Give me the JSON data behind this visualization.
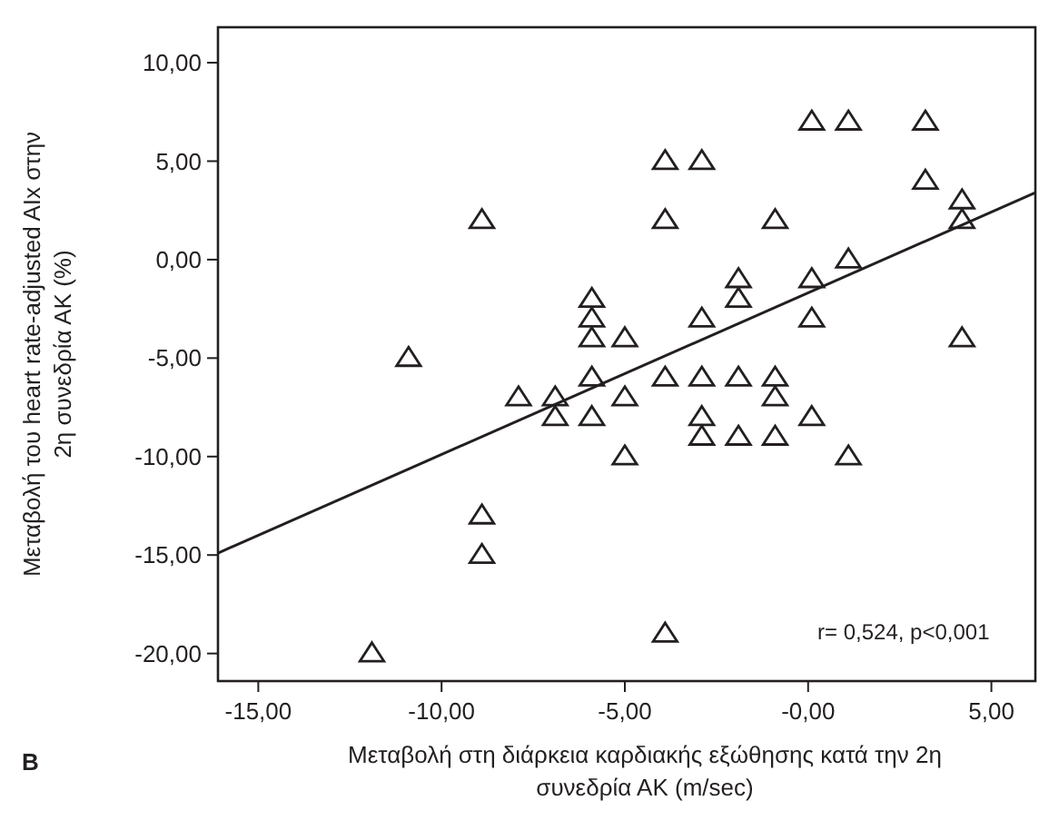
{
  "chart_data": {
    "type": "scatter",
    "xlabel": "Μεταβολή στη διάρκεια καρδιακής εξώθησης κατά την 2η συνεδρία ΑΚ (m/sec)",
    "ylabel": "Μεταβολή του heart rate-adjusted AIx στην 2η συνεδρία ΑΚ (%)",
    "xlim": [
      -16.1,
      6.2
    ],
    "ylim": [
      -21.4,
      11.8
    ],
    "xticks": [
      {
        "value": -15,
        "label": "-15,00"
      },
      {
        "value": -10,
        "label": "-10,00"
      },
      {
        "value": -5,
        "label": "-5,00"
      },
      {
        "value": 0,
        "label": "-0,00"
      },
      {
        "value": 5,
        "label": "5,00"
      }
    ],
    "yticks": [
      {
        "value": 10,
        "label": "10,00"
      },
      {
        "value": 5,
        "label": "5,00"
      },
      {
        "value": 0,
        "label": "0,00"
      },
      {
        "value": -5,
        "label": "-5,00"
      },
      {
        "value": -10,
        "label": "-10,00"
      },
      {
        "value": -15,
        "label": "-15,00"
      },
      {
        "value": -20,
        "label": "-20,00"
      }
    ],
    "grid": false,
    "series": [
      {
        "color": "#231f20",
        "marker": "triangle",
        "x": [
          -11.9,
          -10.9,
          -8.9,
          -8.9,
          -8.9,
          -7.9,
          -6.9,
          -6.9,
          -5.9,
          -5.9,
          -5.9,
          -5.9,
          -5.9,
          -5,
          -5,
          -5,
          -3.9,
          -3.9,
          -3.9,
          -3.9,
          -2.9,
          -2.9,
          -2.9,
          -2.9,
          -2.9,
          -1.9,
          -1.9,
          -1.9,
          -1.9,
          -0.9,
          -0.9,
          -0.9,
          -0.9,
          0.1,
          0.1,
          0.1,
          0.1,
          1.1,
          1.1,
          1.1,
          3.2,
          3.2,
          4.2,
          4.2,
          4.2
        ],
        "values": [
          -20,
          -5,
          2,
          -13,
          -15,
          -7,
          -7,
          -8,
          -2,
          -3,
          -4,
          -6,
          -8,
          -4,
          -7,
          -10,
          5,
          2,
          -6,
          -19,
          5,
          -3,
          -6,
          -8,
          -9,
          -1,
          -2,
          -6,
          -9,
          2,
          -6,
          -7,
          -9,
          7,
          -1,
          -3,
          -8,
          7,
          0,
          -10,
          7,
          4,
          3,
          2,
          -4
        ]
      },
      {
        "type": "line",
        "color": "#231f20",
        "marker": "none",
        "line_style": "solid",
        "x": [
          -16.1,
          6.2
        ],
        "values": [
          -14.9,
          3.4
        ]
      }
    ],
    "annotations": [
      "r= 0,524, p<0,001",
      "B"
    ]
  }
}
